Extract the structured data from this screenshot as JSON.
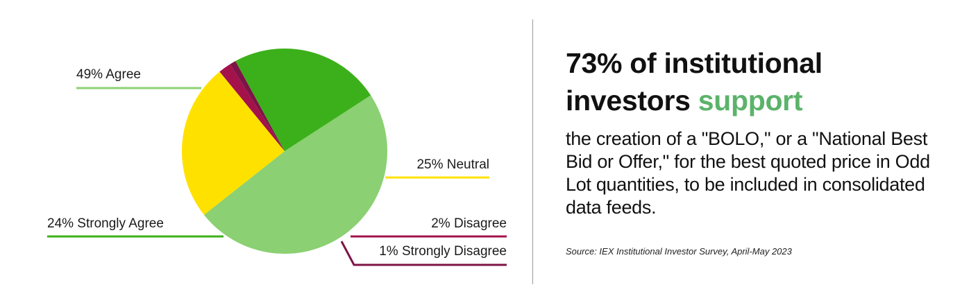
{
  "chart_data": {
    "type": "pie",
    "slices": [
      {
        "label": "49% Agree",
        "value": 49,
        "color": "#8bd072"
      },
      {
        "label": "25% Neutral",
        "value": 25,
        "color": "#ffe100"
      },
      {
        "label": "2% Disagree",
        "value": 2,
        "color": "#a3124a"
      },
      {
        "label": "1% Strongly Disagree",
        "value": 1,
        "color": "#7d1446"
      },
      {
        "label": "24% Strongly Agree",
        "value": 24,
        "color": "#3cb01a"
      }
    ]
  },
  "headline": {
    "line1": "73% of institutional",
    "line2_prefix": "investors ",
    "accent": "support",
    "accent_color": "#5bb36a"
  },
  "body": {
    "text": "the creation of a \"BOLO,\" or a \"National Best Bid or Offer,\" for the best quoted price in Odd Lot quantities, to be included in consolidated data feeds."
  },
  "source": "Source: IEX Institutional Investor Survey, April-May 2023"
}
